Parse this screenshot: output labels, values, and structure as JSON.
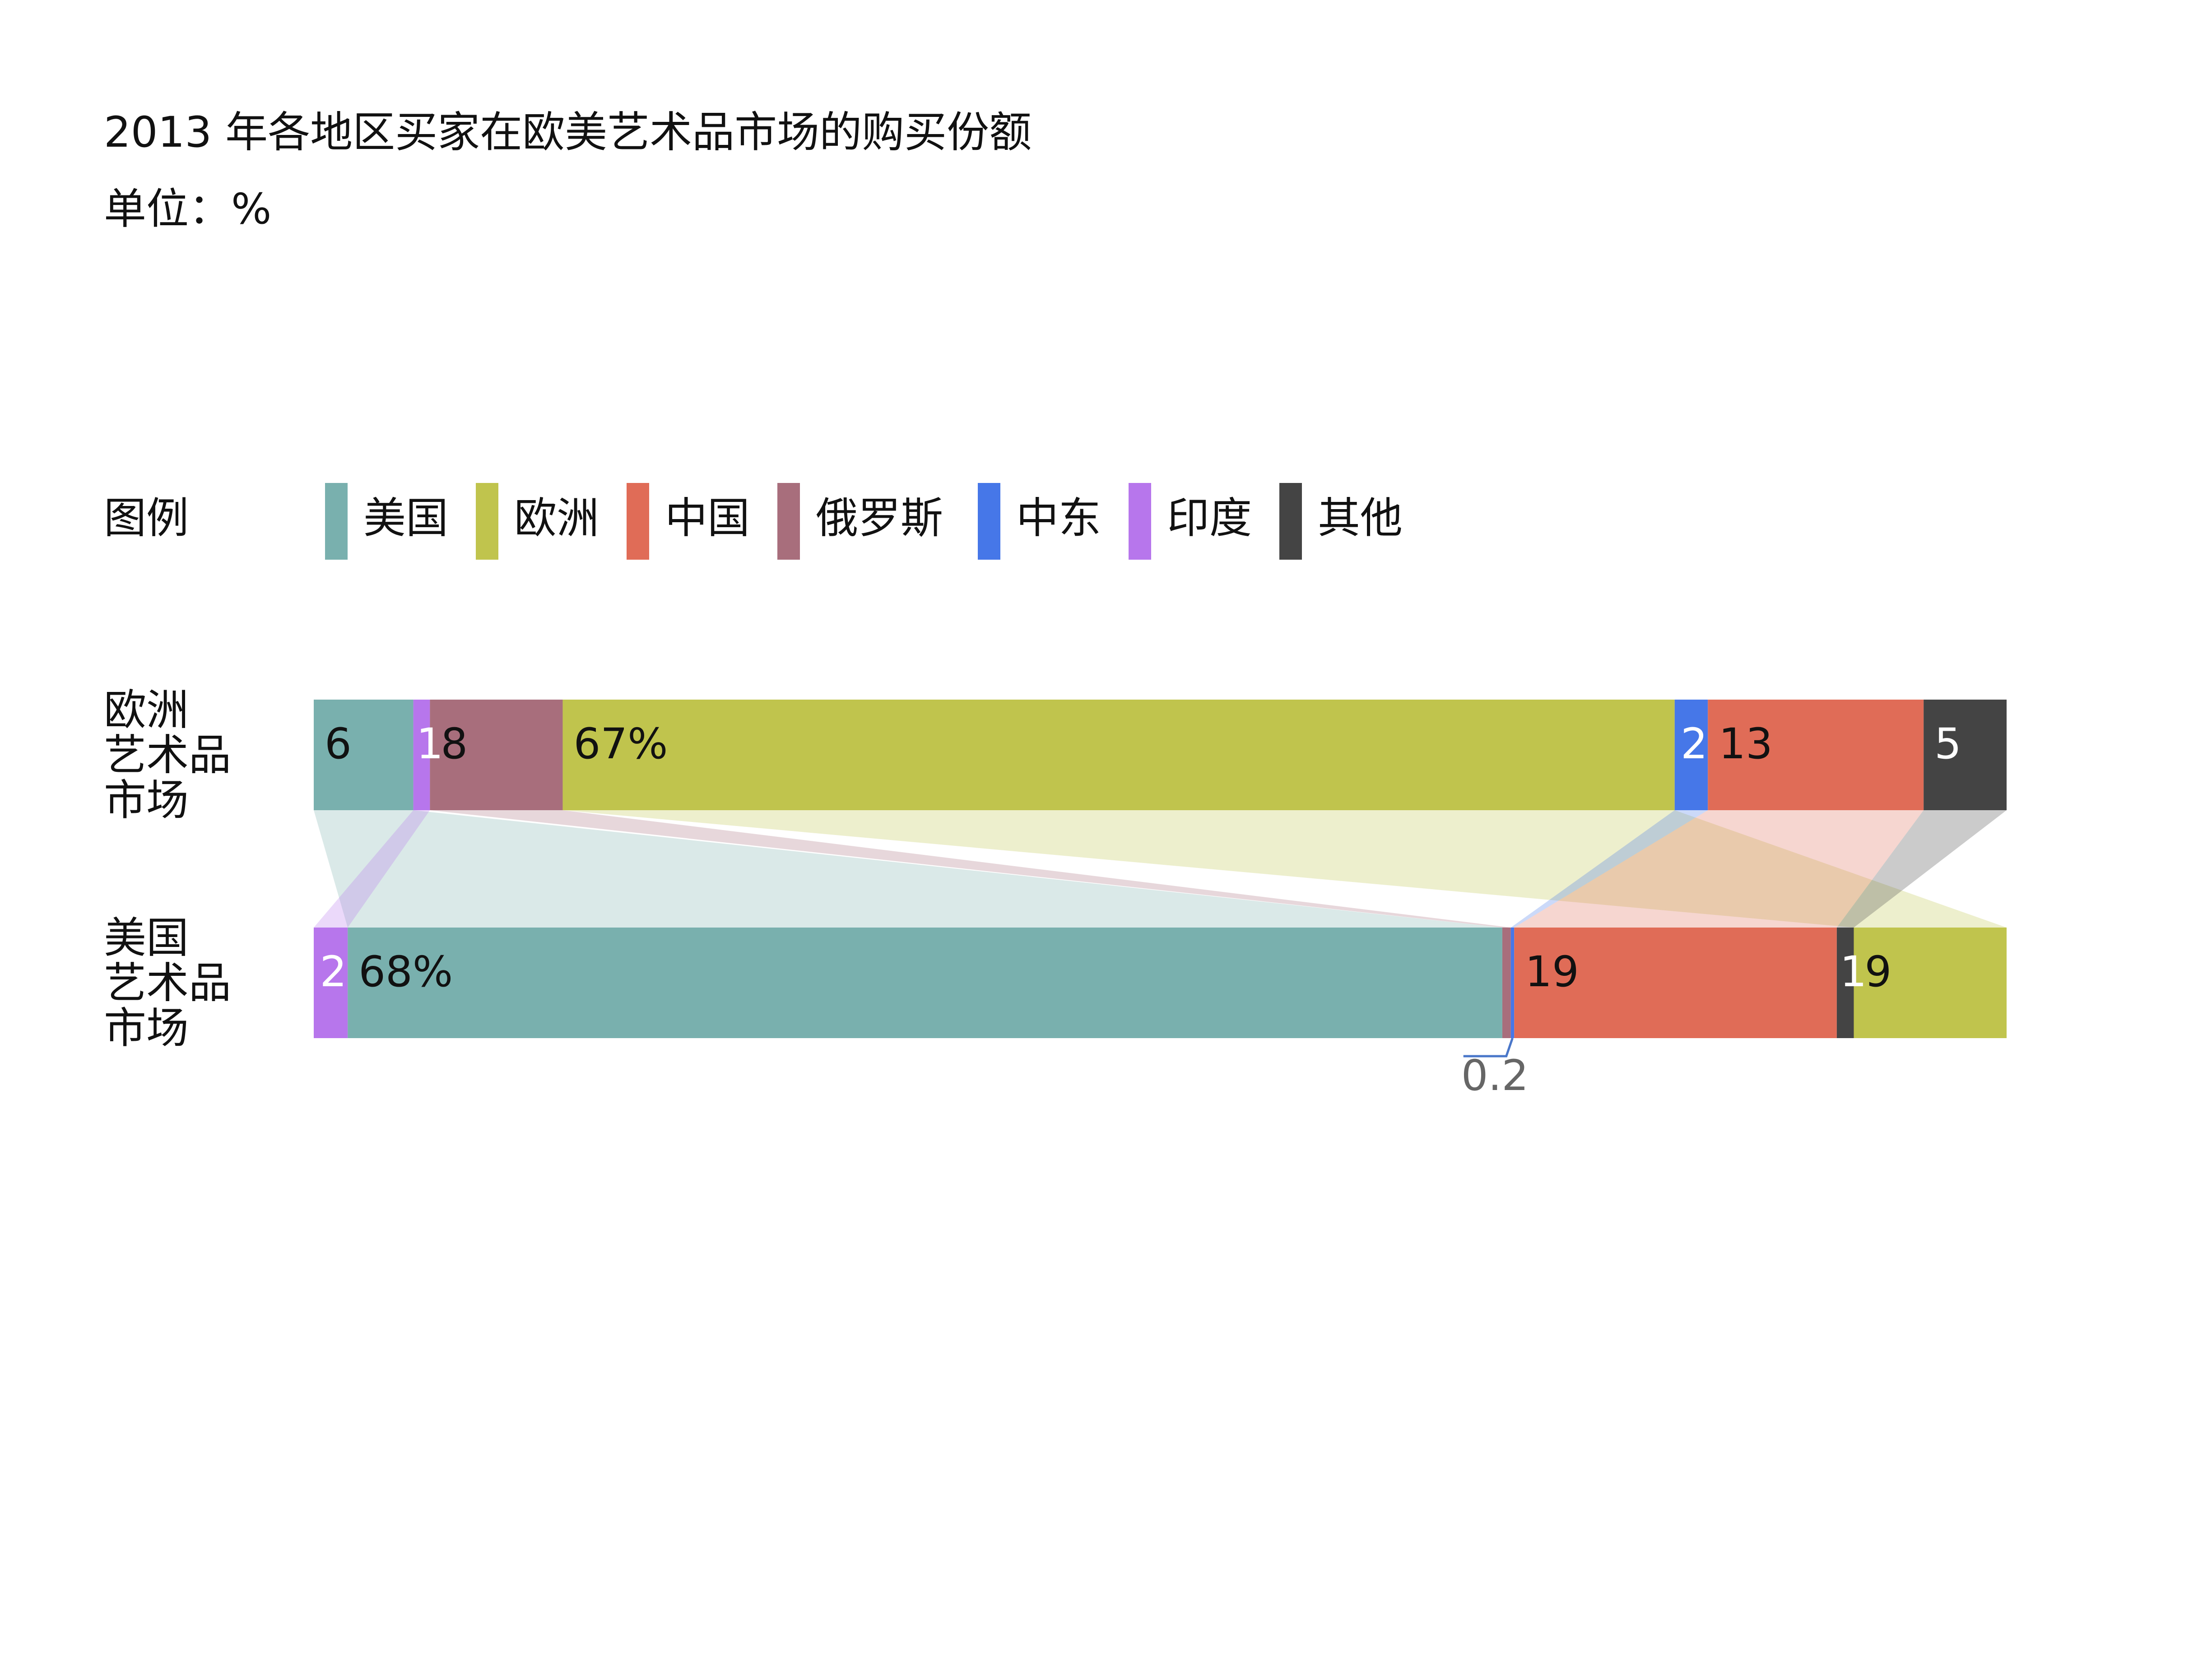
{
  "chart_data": {
    "type": "bar",
    "title": "2013 年各地区买家在欧美艺术品市场的购买份额",
    "subtitle": "单位：%",
    "legend_title": "图例",
    "legend_position": "top-left",
    "categories": [
      "美国",
      "欧洲",
      "中国",
      "俄罗斯",
      "中东",
      "印度",
      "其他"
    ],
    "colors": {
      "美国": "#79b0ae",
      "欧洲": "#c0c44d",
      "中国": "#e06c57",
      "俄罗斯": "#a86e7c",
      "中东": "#4677e8",
      "印度": "#b776ec",
      "其他": "#444444"
    },
    "rows": [
      {
        "label_lines": [
          "欧洲",
          "艺术品",
          "市场"
        ],
        "segments": [
          {
            "category": "美国",
            "value": 6,
            "label": "6"
          },
          {
            "category": "印度",
            "value": 1,
            "label": "1"
          },
          {
            "category": "俄罗斯",
            "value": 8,
            "label": "8"
          },
          {
            "category": "欧洲",
            "value": 67,
            "label": "67%"
          },
          {
            "category": "中东",
            "value": 2,
            "label": "2"
          },
          {
            "category": "中国",
            "value": 13,
            "label": "13"
          },
          {
            "category": "其他",
            "value": 5,
            "label": "5"
          }
        ]
      },
      {
        "label_lines": [
          "美国",
          "艺术品",
          "市场"
        ],
        "segments": [
          {
            "category": "印度",
            "value": 2,
            "label": "2"
          },
          {
            "category": "美国",
            "value": 68,
            "label": "68%"
          },
          {
            "category": "俄罗斯",
            "value": 0.5,
            "label": ""
          },
          {
            "category": "中东",
            "value": 0.2,
            "label": "0.2"
          },
          {
            "category": "中国",
            "value": 19,
            "label": "19"
          },
          {
            "category": "其他",
            "value": 1,
            "label": "1"
          },
          {
            "category": "欧洲",
            "value": 9,
            "label": "9"
          }
        ]
      }
    ]
  }
}
